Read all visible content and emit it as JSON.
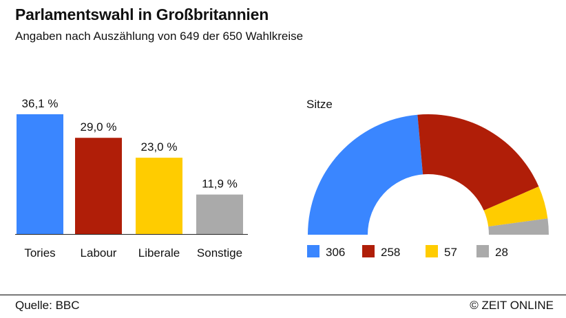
{
  "header": {
    "title": "Parlamentswahl in Großbritannien",
    "subtitle": "Angaben nach Auszählung von 649 der 650 Wahlkreise"
  },
  "footer": {
    "source": "Quelle: BBC",
    "copyright": "© ZEIT ONLINE"
  },
  "chart_data": [
    {
      "type": "bar",
      "title": "",
      "categories": [
        "Tories",
        "Labour",
        "Liberale",
        "Sonstige"
      ],
      "values": [
        36.1,
        29.0,
        23.0,
        11.9
      ],
      "value_labels": [
        "36,1 %",
        "29,0 %",
        "23,0 %",
        "11,9 %"
      ],
      "colors": [
        "#3a86ff",
        "#b01e08",
        "#ffcc00",
        "#aaaaaa"
      ],
      "unit": "%",
      "ylim": [
        0,
        36.1
      ],
      "grid": false
    },
    {
      "type": "pie",
      "subtype": "half-donut",
      "title": "Sitze",
      "values": [
        306,
        258,
        57,
        28
      ],
      "value_labels": [
        "306",
        "258",
        "57",
        "28"
      ],
      "colors": [
        "#3a86ff",
        "#b01e08",
        "#ffcc00",
        "#aaaaaa"
      ],
      "legend": "bottom"
    }
  ]
}
